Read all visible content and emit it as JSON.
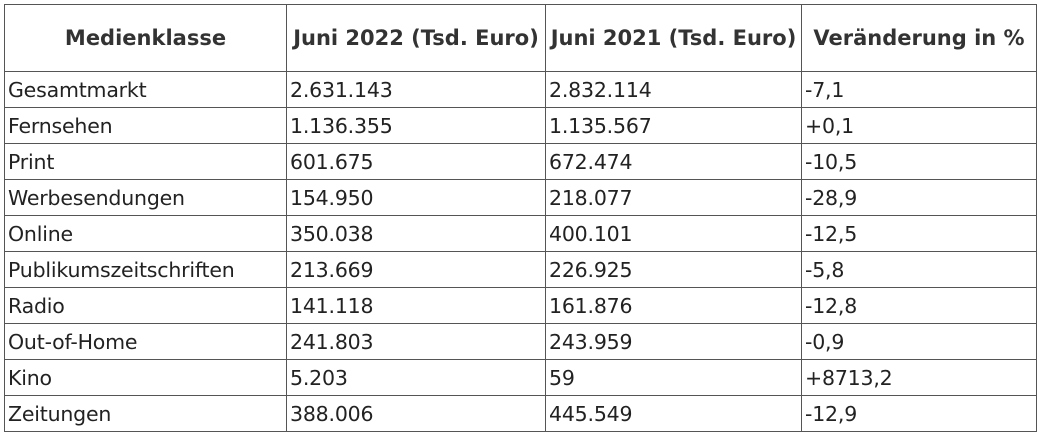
{
  "table": {
    "header": [
      "Medienklasse",
      "Juni 2022 (Tsd. Euro)",
      "Juni 2021 (Tsd. Euro)",
      "Veränderung in %"
    ],
    "rows": [
      [
        "Gesamtmarkt",
        "2.631.143",
        "2.832.114",
        "-7,1"
      ],
      [
        "Fernsehen",
        "1.136.355",
        "1.135.567",
        "+0,1"
      ],
      [
        "Print",
        "601.675",
        "672.474",
        "-10,5"
      ],
      [
        "Werbesendungen",
        "154.950",
        "218.077",
        "-28,9"
      ],
      [
        "Online",
        "350.038",
        "400.101",
        "-12,5"
      ],
      [
        "Publikumszeitschriften",
        "213.669",
        "226.925",
        "-5,8"
      ],
      [
        "Radio",
        "141.118",
        "161.876",
        "-12,8"
      ],
      [
        "Out-of-Home",
        "241.803",
        "243.959",
        "-0,9"
      ],
      [
        "Kino",
        "5.203",
        "59",
        "+8713,2"
      ],
      [
        "Zeitungen",
        "388.006",
        "445.549",
        "-12,9"
      ]
    ]
  }
}
